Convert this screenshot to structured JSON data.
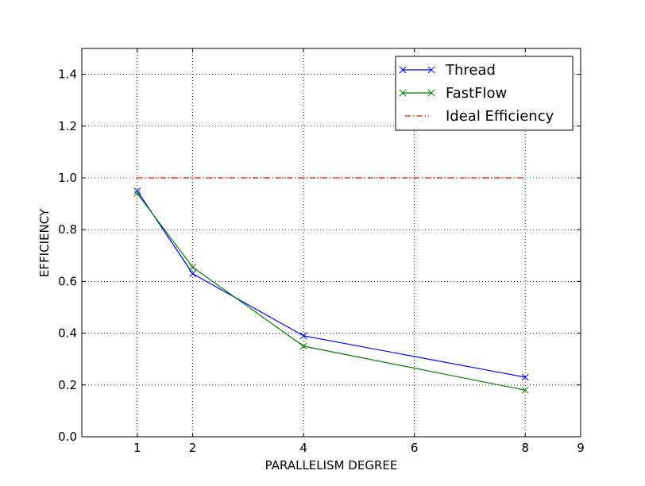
{
  "chart_data": {
    "type": "line",
    "title": "",
    "xlabel": "PARALLELISM DEGREE",
    "ylabel": "EFFICIENCY",
    "xlim": [
      0,
      9
    ],
    "ylim": [
      0.0,
      1.5
    ],
    "x_ticks": [
      1,
      2,
      4,
      6,
      8,
      9
    ],
    "y_ticks": [
      0.0,
      0.2,
      0.4,
      0.6,
      0.8,
      1.0,
      1.2,
      1.4
    ],
    "grid": true,
    "legend_position": "top-right",
    "series": [
      {
        "name": "Thread",
        "color": "#0000ff",
        "marker": "x",
        "linestyle": "solid",
        "x": [
          1,
          2,
          4,
          8
        ],
        "y": [
          0.95,
          0.63,
          0.39,
          0.23
        ]
      },
      {
        "name": "FastFlow",
        "color": "#008000",
        "marker": "x",
        "linestyle": "solid",
        "x": [
          1,
          2,
          4,
          8
        ],
        "y": [
          0.94,
          0.655,
          0.35,
          0.18
        ]
      },
      {
        "name": "Ideal Efficiency",
        "color": "#ff0000",
        "marker": "none",
        "linestyle": "dash-dot",
        "x": [
          1,
          8
        ],
        "y": [
          1.0,
          1.0
        ]
      }
    ]
  }
}
